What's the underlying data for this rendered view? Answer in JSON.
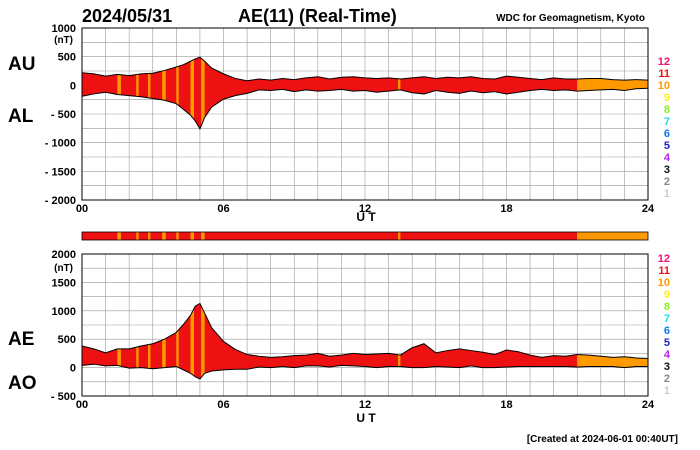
{
  "header": {
    "date": "2024/05/31",
    "title": "AE(11) (Real-Time)",
    "source": "WDC for Geomagnetism, Kyoto"
  },
  "footer": {
    "created": "[Created at 2024-06-01 00:40UT]"
  },
  "colors": {
    "level_colors": {
      "12": "#ee1177",
      "11": "#ee1111",
      "10": "#ff9900",
      "9": "#ffee22",
      "8": "#88ee22",
      "7": "#22dddd",
      "6": "#1177ee",
      "5": "#2222cc",
      "4": "#bb22ee",
      "3": "#111111",
      "2": "#888888",
      "1": "#cccccc"
    },
    "grid": "#999999",
    "outline": "#000000"
  },
  "legend_levels": [
    "12",
    "11",
    "10",
    "9",
    "8",
    "7",
    "6",
    "5",
    "4",
    "3",
    "2",
    "1"
  ],
  "chart_data": [
    {
      "type": "area",
      "name": "AU / AL",
      "label_upper": "AU",
      "label_lower": "AL",
      "unit": "(nT)",
      "ylim": [
        -2000,
        1000
      ],
      "yticks": [
        1000,
        500,
        0,
        -500,
        -1000,
        -1500,
        -2000
      ],
      "ytick_labels": [
        "1000",
        "500",
        "0",
        "- 500",
        "- 1000",
        "- 1500",
        "- 2000"
      ],
      "xlim": [
        0,
        24
      ],
      "xticks": [
        0,
        6,
        12,
        18,
        24
      ],
      "xtick_labels": [
        "00",
        "06",
        "12",
        "18",
        "24"
      ],
      "xlabel": "U T",
      "x": [
        0,
        0.5,
        1,
        1.5,
        2,
        2.5,
        3,
        3.5,
        4,
        4.3,
        4.6,
        4.8,
        5,
        5.2,
        5.5,
        6,
        6.5,
        7,
        7.5,
        8,
        8.5,
        9,
        9.5,
        10,
        10.5,
        11,
        11.5,
        12,
        12.5,
        13,
        13.5,
        14,
        14.5,
        15,
        15.5,
        16,
        16.5,
        17,
        17.5,
        18,
        18.5,
        19,
        19.5,
        20,
        20.5,
        21,
        21.5,
        22,
        22.5,
        23,
        23.5,
        24
      ],
      "series": [
        {
          "name": "AU",
          "values": [
            220,
            200,
            160,
            190,
            170,
            200,
            210,
            260,
            320,
            360,
            420,
            460,
            490,
            420,
            300,
            200,
            120,
            80,
            110,
            90,
            120,
            100,
            130,
            150,
            110,
            140,
            150,
            130,
            120,
            130,
            110,
            130,
            150,
            120,
            140,
            130,
            150,
            120,
            110,
            160,
            140,
            120,
            100,
            130,
            110,
            110,
            120,
            120,
            100,
            90,
            100,
            90
          ]
        },
        {
          "name": "AL",
          "values": [
            -190,
            -150,
            -120,
            -160,
            -180,
            -200,
            -230,
            -260,
            -320,
            -420,
            -520,
            -620,
            -760,
            -560,
            -380,
            -240,
            -180,
            -140,
            -80,
            -90,
            -70,
            -110,
            -80,
            -100,
            -90,
            -70,
            -100,
            -90,
            -120,
            -100,
            -80,
            -130,
            -150,
            -90,
            -120,
            -140,
            -100,
            -130,
            -110,
            -150,
            -120,
            -90,
            -70,
            -90,
            -80,
            -100,
            -90,
            -80,
            -70,
            -90,
            -60,
            -50
          ]
        }
      ]
    },
    {
      "type": "area",
      "name": "AE / AO",
      "label_upper": "AE",
      "label_lower": "AO",
      "unit": "(nT)",
      "ylim": [
        -500,
        2000
      ],
      "yticks": [
        2000,
        1500,
        1000,
        500,
        0,
        -500
      ],
      "ytick_labels": [
        "2000",
        "1500",
        "1000",
        "500",
        "0",
        "- 500"
      ],
      "xlim": [
        0,
        24
      ],
      "xticks": [
        0,
        6,
        12,
        18,
        24
      ],
      "xtick_labels": [
        "00",
        "06",
        "12",
        "18",
        "24"
      ],
      "xlabel": "U T",
      "x": [
        0,
        0.5,
        1,
        1.5,
        2,
        2.5,
        3,
        3.5,
        4,
        4.3,
        4.6,
        4.8,
        5,
        5.2,
        5.5,
        6,
        6.5,
        7,
        7.5,
        8,
        8.5,
        9,
        9.5,
        10,
        10.5,
        11,
        11.5,
        12,
        12.5,
        13,
        13.5,
        14,
        14.5,
        15,
        15.5,
        16,
        16.5,
        17,
        17.5,
        18,
        18.5,
        19,
        19.5,
        20,
        20.5,
        21,
        21.5,
        22,
        22.5,
        23,
        23.5,
        24
      ],
      "series": [
        {
          "name": "AE",
          "values": [
            380,
            330,
            260,
            330,
            330,
            380,
            420,
            500,
            620,
            760,
            920,
            1080,
            1130,
            960,
            700,
            460,
            320,
            230,
            200,
            180,
            190,
            210,
            220,
            250,
            200,
            220,
            250,
            230,
            240,
            250,
            220,
            350,
            420,
            260,
            300,
            330,
            300,
            270,
            230,
            310,
            280,
            220,
            180,
            210,
            200,
            230,
            220,
            200,
            180,
            190,
            170,
            160
          ]
        },
        {
          "name": "AO",
          "values": [
            40,
            60,
            30,
            40,
            -10,
            0,
            -20,
            0,
            20,
            -40,
            -100,
            -160,
            -200,
            -100,
            -60,
            -40,
            -30,
            -30,
            10,
            0,
            20,
            0,
            30,
            30,
            10,
            40,
            30,
            20,
            0,
            20,
            20,
            0,
            0,
            20,
            10,
            0,
            30,
            0,
            0,
            10,
            20,
            20,
            20,
            20,
            20,
            10,
            20,
            20,
            20,
            0,
            20,
            20
          ]
        }
      ]
    }
  ],
  "activity_bar": {
    "segments": [
      {
        "start": 0,
        "end": 21,
        "level": "11"
      },
      {
        "start": 21,
        "end": 24,
        "level": "10"
      }
    ],
    "accent_segments": [
      {
        "start": 1.5,
        "end": 1.65,
        "level": "10"
      },
      {
        "start": 2.3,
        "end": 2.4,
        "level": "10"
      },
      {
        "start": 2.8,
        "end": 2.9,
        "level": "10"
      },
      {
        "start": 3.4,
        "end": 3.55,
        "level": "10"
      },
      {
        "start": 4.0,
        "end": 4.1,
        "level": "10"
      },
      {
        "start": 4.6,
        "end": 4.75,
        "level": "10"
      },
      {
        "start": 5.05,
        "end": 5.2,
        "level": "10"
      },
      {
        "start": 13.4,
        "end": 13.5,
        "level": "10"
      }
    ]
  }
}
